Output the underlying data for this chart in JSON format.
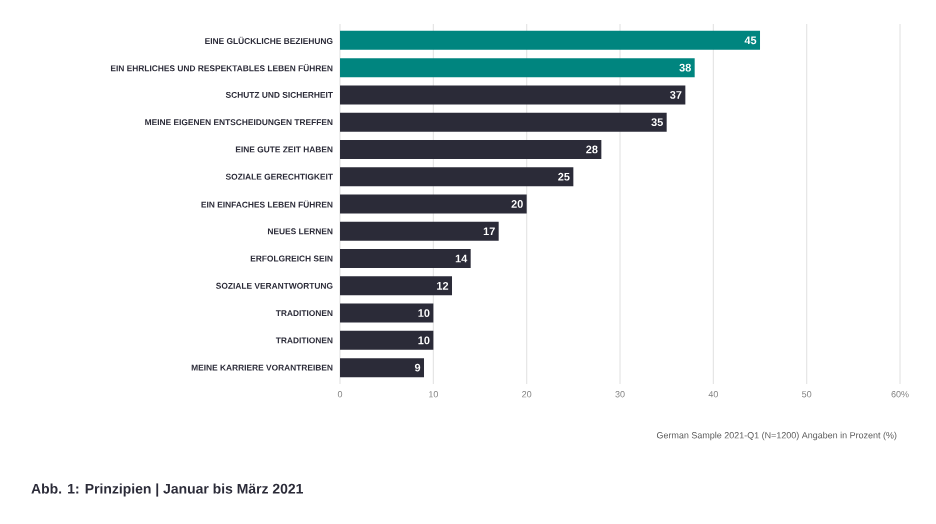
{
  "chart_data": {
    "type": "bar",
    "orientation": "horizontal",
    "title": "Abb. 1: Prinzipien | Januar bis März 2021",
    "categories": [
      "EINE GLÜCKLICHE BEZIEHUNG",
      "EIN EHRLICHES UND RESPEKTABLES LEBEN FÜHREN",
      "SCHUTZ UND SICHERHEIT",
      "MEINE EIGENEN ENTSCHEIDUNGEN TREFFEN",
      "EINE GUTE ZEIT HABEN",
      "SOZIALE GERECHTIGKEIT",
      "EIN EINFACHES LEBEN FÜHREN",
      "NEUES LERNEN",
      "ERFOLGREICH SEIN",
      "SOZIALE VERANTWORTUNG",
      "TRADITIONEN",
      "TRADITIONEN",
      "MEINE KARRIERE VORANTREIBEN"
    ],
    "values": [
      45,
      38,
      37,
      35,
      28,
      25,
      20,
      17,
      14,
      12,
      10,
      10,
      9
    ],
    "colors": [
      "#00857f",
      "#00857f",
      "#2b2b38",
      "#2b2b38",
      "#2b2b38",
      "#2b2b38",
      "#2b2b38",
      "#2b2b38",
      "#2b2b38",
      "#2b2b38",
      "#2b2b38",
      "#2b2b38",
      "#2b2b38"
    ],
    "xlim": [
      0,
      60
    ],
    "xticks": [
      0,
      10,
      20,
      30,
      40,
      50,
      {
        "value": 60,
        "label": "60%"
      }
    ],
    "grid": "x",
    "data_labels": true,
    "annotations": [
      "German Sample 2021-Q1 (N=1200) Angaben in Prozent (%)"
    ]
  }
}
